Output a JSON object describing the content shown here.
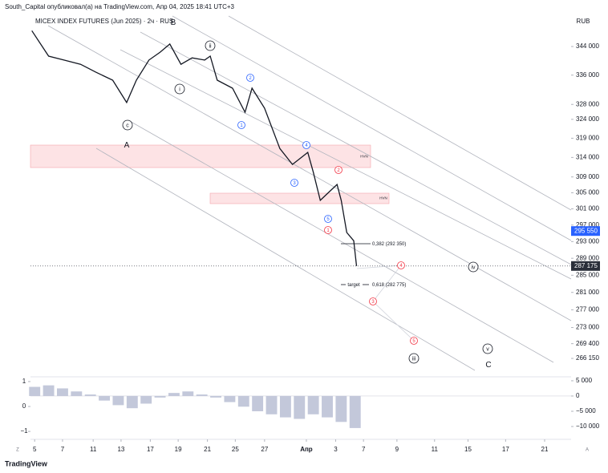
{
  "header": {
    "publisher": "South_Capital опубликовал(а) на TradingView.com, Апр 04, 2025 18:41 UTC+3"
  },
  "footer": {
    "brand": "TradingView"
  },
  "axis_buttons": [
    "Z",
    "A"
  ],
  "chart_data": [
    {
      "type": "line",
      "title": "MICEX INDEX FUTURES (Jun 2025) · 2ч · RUS",
      "currency": "RUB",
      "color": "#131722",
      "log_scale": true,
      "x": [
        -0.2,
        1.0,
        2.1,
        3.3,
        4.4,
        5.6,
        6.6,
        7.3,
        8.2,
        9.0,
        9.7,
        10.5,
        11.3,
        12.2,
        12.6,
        13.1,
        14.2,
        15.1,
        15.6,
        16.5,
        17.6,
        18.5,
        19.6,
        20.0,
        20.5,
        21.1,
        21.7,
        22.0,
        22.4,
        22.9,
        23.1
      ],
      "values": [
        348500,
        341300,
        340200,
        339000,
        336800,
        334600,
        328500,
        334600,
        340200,
        342400,
        344700,
        339000,
        340800,
        340200,
        341300,
        334600,
        332400,
        325900,
        332400,
        327000,
        316300,
        312200,
        315300,
        310200,
        303100,
        305100,
        307100,
        303100,
        295200,
        293200,
        287175
      ],
      "xlim": [
        -0.3,
        38.5
      ],
      "xticks": [
        {
          "value": 0,
          "label": "5"
        },
        {
          "value": 2,
          "label": "7"
        },
        {
          "value": 4.2,
          "label": "11"
        },
        {
          "value": 6.2,
          "label": "13"
        },
        {
          "value": 8.3,
          "label": "17"
        },
        {
          "value": 10.3,
          "label": "19"
        },
        {
          "value": 12.4,
          "label": "21"
        },
        {
          "value": 14.4,
          "label": "25"
        },
        {
          "value": 16.5,
          "label": "27"
        },
        {
          "value": 19.5,
          "label": "Апр"
        },
        {
          "value": 21.6,
          "label": "3"
        },
        {
          "value": 23.6,
          "label": "7"
        },
        {
          "value": 26,
          "label": "9"
        },
        {
          "value": 28.7,
          "label": "11"
        },
        {
          "value": 31.1,
          "label": "15"
        },
        {
          "value": 33.8,
          "label": "17"
        },
        {
          "value": 36.6,
          "label": "21"
        }
      ],
      "ylim": [
        262500,
        353200
      ],
      "yticks": [
        {
          "value": 344000,
          "label": "344 000"
        },
        {
          "value": 336000,
          "label": "336 000"
        },
        {
          "value": 328000,
          "label": "328 000"
        },
        {
          "value": 324000,
          "label": "324 000"
        },
        {
          "value": 319000,
          "label": "319 000"
        },
        {
          "value": 314000,
          "label": "314 000"
        },
        {
          "value": 309000,
          "label": "309 000"
        },
        {
          "value": 305000,
          "label": "305 000"
        },
        {
          "value": 301000,
          "label": "301 000"
        },
        {
          "value": 297000,
          "label": "297 000"
        },
        {
          "value": 293000,
          "label": "293 000"
        },
        {
          "value": 289000,
          "label": "289 000"
        },
        {
          "value": 285000,
          "label": "285 000"
        },
        {
          "value": 281000,
          "label": "281 000"
        },
        {
          "value": 277000,
          "label": "277 000"
        },
        {
          "value": 273000,
          "label": "273 000"
        },
        {
          "value": 269400,
          "label": "269 400"
        },
        {
          "value": 266150,
          "label": "266 150"
        }
      ],
      "price_labels": [
        {
          "value": 295550,
          "label": "295 550",
          "color": "#2962ff"
        },
        {
          "value": 287175,
          "label": "287 175",
          "color": "#2a2e39"
        }
      ],
      "annotations": [
        {
          "text": "B",
          "color": "#131722"
        },
        {
          "text": "ii",
          "color": "#131722"
        },
        {
          "text": "i",
          "color": "#131722"
        },
        {
          "text": "c",
          "color": "#131722"
        },
        {
          "text": "A",
          "color": "#131722"
        },
        {
          "text": "2",
          "color": "#2962ff"
        },
        {
          "text": "1",
          "color": "#2962ff"
        },
        {
          "text": "4",
          "color": "#2962ff"
        },
        {
          "text": "3",
          "color": "#2962ff"
        },
        {
          "text": "2",
          "color": "#f23645"
        },
        {
          "text": "5",
          "color": "#2962ff"
        },
        {
          "text": "1",
          "color": "#f23645"
        },
        {
          "text": "4",
          "color": "#f23645"
        },
        {
          "text": "3",
          "color": "#f23645"
        },
        {
          "text": "5",
          "color": "#f23645"
        },
        {
          "text": "iii",
          "color": "#131722"
        },
        {
          "text": "iv",
          "color": "#131722"
        },
        {
          "text": "v",
          "color": "#131722"
        },
        {
          "text": "C",
          "color": "#131722"
        },
        {
          "text": "HVN",
          "color": "#131722"
        },
        {
          "text": "HVN",
          "color": "#131722"
        },
        {
          "text": "0,382 (292 350)",
          "color": "#131722"
        },
        {
          "text": "target",
          "color": "#131722"
        },
        {
          "text": "0,618 (282 775)",
          "color": "#131722"
        }
      ]
    },
    {
      "type": "bar",
      "color": "#c3c8da",
      "x": [
        0,
        1,
        2,
        3,
        4,
        5,
        6,
        7,
        8,
        9,
        10,
        11,
        12,
        13,
        14,
        15,
        16,
        17,
        18,
        19,
        20,
        21,
        22,
        23
      ],
      "values": [
        3000,
        3500,
        2500,
        1500,
        500,
        -1500,
        -3000,
        -4000,
        -2500,
        -500,
        1000,
        1500,
        500,
        -500,
        -2000,
        -3500,
        -5000,
        -6000,
        -7000,
        -7500,
        -6000,
        -7000,
        -8500,
        -10500
      ],
      "axis": "y2",
      "ylim": [
        -1.06,
        1.19
      ],
      "yticks": [
        1,
        0,
        {
          "value": -1,
          "label": "−1"
        }
      ],
      "y2lim": [
        -12100,
        6300
      ],
      "y2ticks": [
        {
          "value": 5000,
          "label": "5 000"
        },
        0,
        {
          "value": -5000,
          "label": "−5 000"
        },
        {
          "value": -10000,
          "label": "−10 000"
        }
      ]
    }
  ]
}
